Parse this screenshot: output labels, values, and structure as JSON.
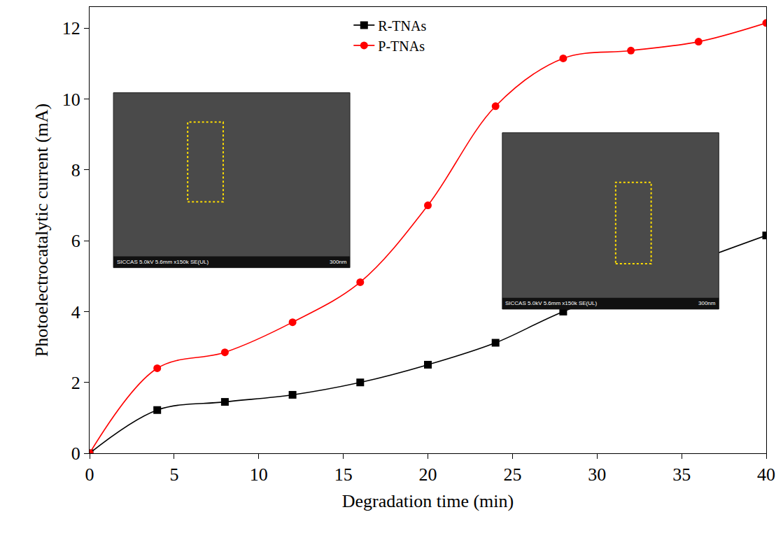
{
  "chart_data": {
    "type": "line",
    "x_label": "Degradation time (min)",
    "y_label": "Photoelectrocatalytic current (mA)",
    "xlim": [
      0,
      40
    ],
    "xticks": [
      0,
      5,
      10,
      15,
      20,
      25,
      30,
      35,
      40
    ],
    "ylim": [
      0,
      12.6
    ],
    "yticks": [
      0,
      2,
      4,
      6,
      8,
      10,
      12
    ],
    "grid": false,
    "legend": "top",
    "series": [
      {
        "name": "R-TNAs",
        "color": "#000000",
        "marker": "square",
        "line_style": "smooth",
        "x": [
          0,
          4,
          8,
          12,
          16,
          20,
          24,
          28,
          40
        ],
        "values": [
          0,
          1.22,
          1.45,
          1.65,
          2.0,
          2.5,
          3.12,
          4.0,
          6.15
        ]
      },
      {
        "name": "P-TNAs",
        "color": "#ff0000",
        "marker": "circle",
        "line_style": "smooth",
        "x": [
          0,
          4,
          8,
          12,
          16,
          20,
          24,
          28,
          32,
          36,
          40
        ],
        "values": [
          0,
          2.4,
          2.85,
          3.7,
          4.83,
          7.0,
          9.8,
          11.15,
          11.37,
          11.62,
          12.15
        ]
      }
    ],
    "annotations": [
      {
        "text": "SICCAS 5.0kV 5.6mm x150k SE(UL)"
      },
      {
        "text": "300nm"
      },
      {
        "text": "SICCAS 5.0kV 5.6mm x150k SE(UL)"
      },
      {
        "text": "300nm"
      }
    ]
  }
}
